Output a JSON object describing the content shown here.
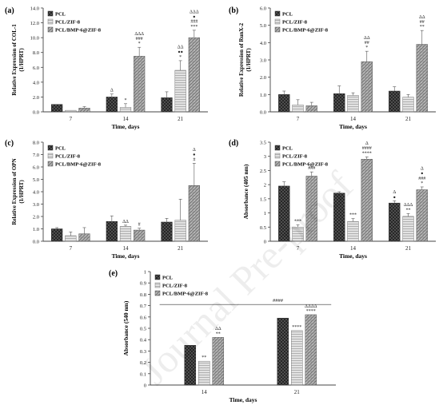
{
  "watermark": "Journal Pre-proof",
  "colors": {
    "pcl": "#3c3c3c",
    "zif": "#c4c4c4",
    "bmp": "#9a9a9a",
    "axis": "#444444"
  },
  "chart_data": [
    {
      "panel": "(a)",
      "type": "bar",
      "categories": [
        "7",
        "14",
        "21"
      ],
      "xlabel": "Time, days",
      "ylabel": "Relative Expression of COL-1 (1/HPRT)",
      "ylim": [
        0,
        14
      ],
      "ytick_step": 2,
      "yticks": [
        "0.0",
        "2.0",
        "4.0",
        "6.0",
        "8.0",
        "10.0",
        "12.0",
        "14.0"
      ],
      "legend": "top-left",
      "legend_entries": [
        "PCL",
        "PCL/ZIF-8",
        "PCL/BMP-6@ZIF-8"
      ],
      "series": [
        {
          "name": "PCL",
          "values": [
            1.0,
            2.0,
            1.9
          ],
          "errors": [
            0,
            0.4,
            0.8
          ]
        },
        {
          "name": "PCL/ZIF-8",
          "values": [
            0.2,
            0.6,
            5.6
          ],
          "errors": [
            0,
            0.5,
            1.3
          ]
        },
        {
          "name": "PCL/BMP-6@ZIF-8",
          "values": [
            0.5,
            7.5,
            10.0
          ],
          "errors": [
            0.2,
            1.2,
            1.0
          ]
        }
      ],
      "annotations": [
        {
          "group": 1,
          "bar": 0,
          "lines": [
            "Δ"
          ]
        },
        {
          "group": 1,
          "bar": 1,
          "lines": [
            "*"
          ]
        },
        {
          "group": 1,
          "bar": 2,
          "lines": [
            "ΔΔΔ",
            "###",
            "*"
          ]
        },
        {
          "group": 2,
          "bar": 1,
          "lines": [
            "ΔΔ",
            "●●",
            "*"
          ]
        },
        {
          "group": 2,
          "bar": 2,
          "lines": [
            "ΔΔΔ",
            "●",
            "###",
            "***"
          ]
        }
      ]
    },
    {
      "panel": "(b)",
      "type": "bar",
      "categories": [
        "7",
        "14",
        "21"
      ],
      "xlabel": "Time, days",
      "ylabel": "Relative Expression of RunX-2 (1/HPRT)",
      "ylim": [
        0,
        6
      ],
      "ytick_step": 1,
      "yticks": [
        "0.0",
        "1.0",
        "2.0",
        "3.0",
        "4.0",
        "5.0",
        "6.0"
      ],
      "legend": "top-left",
      "legend_entries": [
        "PCL",
        "PCL/ZIF-8",
        "PCL/BMP-6@ZIF-8"
      ],
      "series": [
        {
          "name": "PCL",
          "values": [
            1.0,
            1.05,
            1.2
          ],
          "errors": [
            0.2,
            0.45,
            0.25
          ]
        },
        {
          "name": "PCL/ZIF-8",
          "values": [
            0.4,
            0.95,
            0.85
          ],
          "errors": [
            0.3,
            0.15,
            0.15
          ]
        },
        {
          "name": "PCL/BMP-6@ZIF-8",
          "values": [
            0.35,
            2.9,
            3.9
          ],
          "errors": [
            0.2,
            0.6,
            0.8
          ]
        }
      ],
      "annotations": [
        {
          "group": 1,
          "bar": 2,
          "lines": [
            "ΔΔ",
            "##",
            "*"
          ]
        },
        {
          "group": 2,
          "bar": 2,
          "lines": [
            "ΔΔ",
            "##",
            "**"
          ]
        }
      ]
    },
    {
      "panel": "(c)",
      "type": "bar",
      "categories": [
        "7",
        "14",
        "21"
      ],
      "xlabel": "Time, days",
      "ylabel": "Relative Expression of OPN (1/HPRT)",
      "ylim": [
        0,
        8
      ],
      "ytick_step": 1,
      "yticks": [
        "0.0",
        "1.0",
        "2.0",
        "3.0",
        "4.0",
        "5.0",
        "6.0",
        "7.0",
        "8.0"
      ],
      "legend": "top-left",
      "legend_entries": [
        "PCL",
        "PCL/ZIF-8",
        "PCL/BMP-6@ZIF-8"
      ],
      "series": [
        {
          "name": "PCL",
          "values": [
            1.0,
            1.6,
            1.55
          ],
          "errors": [
            0.1,
            0.45,
            0.3
          ]
        },
        {
          "name": "PCL/ZIF-8",
          "values": [
            0.45,
            1.2,
            1.7
          ],
          "errors": [
            0.3,
            0.1,
            1.7
          ]
        },
        {
          "name": "PCL/BMP-6@ZIF-8",
          "values": [
            0.6,
            0.9,
            4.5
          ],
          "errors": [
            0.5,
            0.15,
            1.8
          ]
        }
      ],
      "annotations": [
        {
          "group": 1,
          "bar": 1,
          "lines": [
            "ΔΔ"
          ]
        },
        {
          "group": 1,
          "bar": 2,
          "lines": [
            "#"
          ]
        },
        {
          "group": 2,
          "bar": 2,
          "lines": [
            "Δ",
            "●",
            "#"
          ]
        }
      ]
    },
    {
      "panel": "(d)",
      "type": "bar",
      "categories": [
        "7",
        "14",
        "21"
      ],
      "xlabel": "Time, days",
      "ylabel": "Absorbance (405 nm)",
      "ylim": [
        0,
        3.5
      ],
      "ytick_step": 0.5,
      "yticks": [
        "0",
        "0.5",
        "1",
        "1.5",
        "2",
        "2.5",
        "3",
        "3.5"
      ],
      "legend": "top-left",
      "legend_entries": [
        "PCL",
        "PCL/ZIF-8",
        "PCL/BMP-6@ZIF-8"
      ],
      "series": [
        {
          "name": "PCL",
          "values": [
            1.95,
            1.7,
            1.35
          ],
          "errors": [
            0.15,
            0.05,
            0.08
          ]
        },
        {
          "name": "PCL/ZIF-8",
          "values": [
            0.5,
            0.7,
            0.88
          ],
          "errors": [
            0.08,
            0.1,
            0.1
          ]
        },
        {
          "name": "PCL/BMP-6@ZIF-8",
          "values": [
            2.3,
            2.9,
            1.82
          ],
          "errors": [
            0.15,
            0.08,
            0.1
          ]
        }
      ],
      "annotations": [
        {
          "group": 0,
          "bar": 1,
          "lines": [
            "***"
          ]
        },
        {
          "group": 0,
          "bar": 2,
          "lines": [
            "###"
          ]
        },
        {
          "group": 1,
          "bar": 1,
          "lines": [
            "***"
          ]
        },
        {
          "group": 1,
          "bar": 2,
          "lines": [
            "Δ",
            "####",
            "****"
          ]
        },
        {
          "group": 2,
          "bar": 0,
          "lines": [
            "Δ",
            "●"
          ]
        },
        {
          "group": 2,
          "bar": 1,
          "lines": [
            "ΔΔΔ",
            "**"
          ]
        },
        {
          "group": 2,
          "bar": 2,
          "lines": [
            "Δ",
            "●",
            "###",
            "*"
          ]
        }
      ]
    },
    {
      "panel": "(e)",
      "type": "bar",
      "categories": [
        "14",
        "21"
      ],
      "xlabel": "Time, days",
      "ylabel": "Absorbance (540 nm)",
      "ylim": [
        0,
        1
      ],
      "ytick_step": 0.1,
      "yticks": [
        "0",
        "0.1",
        "0.2",
        "0.3",
        "0.4",
        "0.5",
        "0.6",
        "0.7",
        "0.8",
        "0.9",
        "1"
      ],
      "legend": "top-left",
      "legend_entries": [
        "PCL",
        "PCL/ZIF-8",
        "PCL/BMP-6@ZIF-8"
      ],
      "series": [
        {
          "name": "PCL",
          "values": [
            0.35,
            0.59
          ],
          "errors": [
            0,
            0
          ]
        },
        {
          "name": "PCL/ZIF-8",
          "values": [
            0.21,
            0.48
          ],
          "errors": [
            0,
            0
          ]
        },
        {
          "name": "PCL/BMP-6@ZIF-8",
          "values": [
            0.42,
            0.62
          ],
          "errors": [
            0,
            0
          ]
        }
      ],
      "annotations": [
        {
          "group": 0,
          "bar": 1,
          "lines": [
            "**"
          ]
        },
        {
          "group": 0,
          "bar": 2,
          "lines": [
            "ΔΔ",
            "**"
          ]
        },
        {
          "group": 1,
          "bar": 1,
          "lines": [
            "****"
          ]
        },
        {
          "group": 1,
          "bar": 2,
          "lines": [
            "ΔΔΔΔ",
            "****"
          ]
        }
      ],
      "bracket": {
        "from_group": 0,
        "to_group": 1,
        "value": 0.71,
        "label": "####"
      }
    }
  ]
}
